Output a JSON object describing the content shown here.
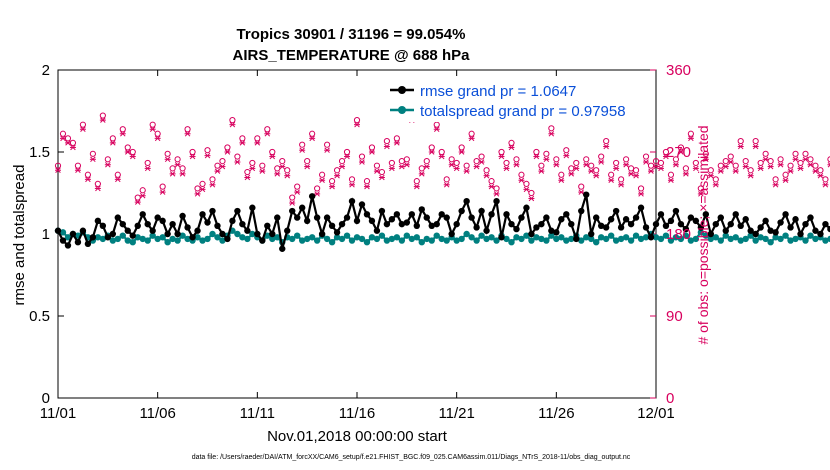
{
  "chart_data": {
    "type": "line",
    "title": "Tropics 30901 / 31196 = 99.054%",
    "subtitle": "AIRS_TEMPERATURE @ 688 hPa",
    "xlabel": "Nov.01,2018 00:00:00 start",
    "ylabel": "rmse and totalspread",
    "ylabel_right": "# of obs: o=possible; ×=assimilated",
    "footnote": "data file: /Users/raeder/DAI/ATM_forcXX/CAM6_setup/f.e21.FHIST_BGC.f09_025.CAM6assim.011/Diags_NTrS_2018-11/obs_diag_output.nc",
    "xlim": [
      0,
      30
    ],
    "ylim": [
      0,
      2
    ],
    "ylim_right": [
      0,
      360
    ],
    "x_ticks": [
      0,
      5,
      10,
      15,
      20,
      25,
      30
    ],
    "x_tick_labels": [
      "11/01",
      "11/06",
      "11/11",
      "11/16",
      "11/21",
      "11/26",
      "12/01"
    ],
    "y_ticks": [
      0,
      0.5,
      1,
      1.5,
      2
    ],
    "y_tick_labels": [
      "0",
      "0.5",
      "1",
      "1.5",
      "2"
    ],
    "y_right_ticks": [
      0,
      90,
      180,
      270,
      360
    ],
    "y_right_tick_labels": [
      "0",
      "90",
      "180",
      "270",
      "360"
    ],
    "step_days": 0.25,
    "legend_position": "top-right",
    "colors": {
      "rmse": "#000000",
      "spread": "#008080",
      "obs": "#d8005e",
      "legend_text": "#0a4fd8"
    },
    "series": [
      {
        "name": "rmse grand pr = 1.0647",
        "values": [
          1.02,
          0.96,
          0.93,
          1.0,
          0.95,
          1.02,
          0.94,
          0.98,
          1.08,
          1.05,
          0.98,
          1.0,
          1.1,
          1.06,
          1.02,
          0.99,
          1.05,
          1.12,
          1.06,
          1.02,
          1.1,
          1.08,
          1.0,
          1.06,
          1.0,
          1.11,
          1.04,
          0.98,
          1.02,
          1.12,
          1.07,
          1.14,
          1.05,
          1.0,
          0.97,
          1.08,
          1.14,
          1.06,
          1.02,
          1.16,
          1.0,
          0.96,
          1.05,
          1.0,
          1.1,
          0.91,
          1.02,
          1.14,
          1.1,
          1.16,
          1.08,
          1.23,
          1.1,
          1.0,
          1.1,
          1.05,
          1.01,
          1.06,
          1.1,
          1.2,
          1.08,
          1.18,
          1.12,
          1.08,
          1.02,
          1.14,
          1.06,
          1.09,
          1.12,
          1.06,
          1.07,
          1.12,
          1.05,
          1.15,
          1.1,
          1.05,
          1.06,
          1.12,
          1.1,
          1.0,
          1.06,
          1.14,
          1.2,
          1.1,
          1.04,
          1.14,
          1.02,
          1.12,
          1.2,
          0.98,
          1.12,
          1.06,
          1.03,
          1.1,
          1.16,
          1.0,
          1.04,
          1.06,
          1.1,
          1.02,
          1.01,
          1.09,
          1.12,
          1.06,
          0.97,
          1.14,
          1.24,
          1.0,
          1.1,
          1.05,
          1.04,
          1.09,
          1.14,
          1.04,
          1.09,
          1.06,
          1.1,
          1.16,
          1.04,
          0.98,
          1.06,
          1.12,
          1.05,
          1.08,
          1.14,
          1.06,
          1.03,
          1.1,
          1.08,
          1.04,
          1.12,
          1.0,
          1.06,
          1.1,
          1.02,
          1.06,
          1.12,
          1.05,
          1.09,
          1.02,
          1.0,
          1.04,
          1.08,
          1.02,
          1.01,
          1.07,
          1.12,
          1.04,
          1.09,
          1.0,
          1.06,
          1.1,
          1.02,
          1.0,
          1.06,
          1.03,
          1.08,
          1.16,
          1.1,
          1.04,
          1.0,
          1.08,
          1.14,
          1.05,
          1.1,
          1.2,
          1.08,
          1.16,
          1.02,
          1.06,
          1.18,
          1.1,
          0.98,
          1.06,
          1.1,
          0.96,
          0.88,
          1.04,
          1.1,
          1.2,
          1.08,
          1.0,
          1.1,
          1.16,
          1.06,
          1.12,
          1.0,
          0.96,
          1.06,
          1.2,
          1.14,
          1.04,
          1.1,
          1.02,
          1.0,
          1.06,
          1.16,
          1.08,
          1.04,
          1.12,
          1.1,
          0.94,
          0.9,
          1.04,
          1.12,
          1.0,
          0.96,
          1.05,
          1.02,
          0.9,
          1.0,
          1.14,
          1.02,
          1.0
        ]
      },
      {
        "name": "totalspread grand pr = 0.97958",
        "values": [
          1.02,
          1.01,
          0.98,
          1.0,
          0.99,
          1.01,
          0.98,
          0.96,
          0.98,
          0.97,
          0.99,
          0.96,
          0.97,
          0.99,
          0.96,
          0.95,
          0.98,
          0.97,
          0.96,
          0.99,
          0.97,
          0.98,
          0.95,
          0.97,
          0.96,
          0.99,
          0.97,
          0.96,
          0.98,
          0.96,
          0.97,
          1.0,
          0.98,
          0.96,
          0.99,
          1.02,
          1.0,
          0.98,
          0.97,
          1.0,
          0.98,
          0.96,
          0.99,
          0.97,
          0.98,
          0.95,
          0.98,
          0.97,
          0.99,
          0.96,
          0.97,
          0.98,
          0.96,
          0.99,
          0.97,
          0.95,
          0.98,
          0.97,
          0.99,
          0.96,
          0.98,
          0.97,
          0.95,
          0.98,
          0.97,
          0.99,
          0.96,
          0.97,
          0.98,
          0.96,
          0.99,
          0.97,
          0.98,
          0.95,
          0.97,
          0.96,
          0.99,
          0.97,
          0.96,
          0.98,
          0.96,
          0.97,
          1.0,
          0.98,
          0.96,
          0.99,
          0.97,
          0.98,
          0.96,
          0.99,
          0.97,
          0.95,
          0.98,
          0.97,
          0.99,
          0.96,
          0.98,
          0.97,
          0.96,
          0.99,
          0.97,
          0.98,
          0.96,
          0.97,
          0.99,
          0.96,
          0.98,
          0.97,
          0.95,
          0.98,
          0.97,
          0.99,
          0.96,
          0.97,
          0.98,
          0.96,
          0.99,
          0.97,
          0.98,
          1.0,
          0.98,
          0.97,
          0.99,
          0.96,
          0.98,
          0.97,
          0.99,
          0.96,
          0.97,
          1.01,
          0.99,
          0.97,
          0.98,
          0.96,
          0.99,
          0.97,
          0.98,
          0.96,
          0.97,
          0.99,
          0.96,
          0.98,
          0.97,
          0.95,
          0.98,
          0.97,
          0.99,
          0.96,
          0.97,
          0.98,
          0.96,
          0.99,
          0.97,
          0.98,
          0.96,
          0.97,
          0.99,
          0.96,
          0.98,
          1.0,
          0.98,
          0.96,
          0.99,
          0.97,
          0.98,
          0.96,
          0.97,
          0.99,
          0.96,
          0.98,
          0.97,
          0.95,
          0.98,
          0.97,
          0.99,
          0.96,
          0.97,
          0.98,
          0.96,
          0.99,
          1.01,
          0.99,
          0.97,
          0.98,
          0.96,
          0.99,
          0.97,
          0.98,
          0.96,
          0.97,
          0.99,
          0.96,
          0.98,
          0.97,
          0.95,
          0.98,
          0.97,
          0.99,
          0.96,
          0.97,
          0.98,
          0.96,
          0.99,
          0.97,
          0.98,
          0.96,
          0.97,
          1.0,
          0.99,
          0.97,
          0.98,
          0.96,
          0.99,
          0.97,
          0.98,
          0.96,
          0.97,
          0.99,
          0.96
        ]
      }
    ],
    "obs_possible": [
      255,
      290,
      285,
      280,
      255,
      300,
      245,
      268,
      235,
      310,
      262,
      285,
      245,
      295,
      275,
      270,
      220,
      228,
      258,
      300,
      290,
      232,
      268,
      252,
      262,
      252,
      295,
      270,
      230,
      235,
      272,
      240,
      255,
      260,
      275,
      305,
      265,
      285,
      248,
      258,
      285,
      255,
      295,
      270,
      252,
      260,
      250,
      220,
      232,
      278,
      260,
      290,
      230,
      245,
      278,
      238,
      250,
      260,
      270,
      240,
      305,
      265,
      238,
      275,
      255,
      248,
      282,
      258,
      285,
      260,
      262,
      310,
      238,
      252,
      260,
      275,
      300,
      270,
      240,
      262,
      258,
      275,
      255,
      290,
      260,
      265,
      250,
      238,
      230,
      270,
      258,
      280,
      262,
      245,
      235,
      225,
      270,
      255,
      268,
      296,
      262,
      245,
      272,
      252,
      258,
      232,
      262,
      255,
      250,
      265,
      282,
      245,
      258,
      240,
      262,
      252,
      250,
      230,
      265,
      255,
      260,
      258,
      270,
      245,
      262,
      275,
      252,
      290,
      258,
      230,
      268,
      250,
      240,
      255,
      260,
      265,
      255,
      282,
      260,
      250,
      282,
      258,
      268,
      260,
      240,
      262,
      245,
      255,
      268,
      258,
      268,
      262,
      255,
      250,
      240,
      262,
      268,
      265,
      290,
      258,
      245,
      270,
      255,
      258,
      275,
      240,
      258,
      262,
      250,
      258,
      268,
      245,
      290,
      258,
      280,
      262,
      255,
      270,
      232,
      258,
      255,
      262,
      268,
      258,
      265,
      250,
      275,
      285,
      258,
      240,
      262,
      265,
      255,
      270,
      250,
      258,
      268,
      245,
      258,
      255,
      275,
      262,
      268,
      258,
      255,
      245,
      262,
      268,
      270,
      258,
      305,
      258,
      275,
      262,
      290,
      295,
      310,
      295,
      290,
      300
    ],
    "obs_assimilated": [
      250,
      285,
      280,
      275,
      250,
      295,
      240,
      262,
      230,
      305,
      256,
      280,
      240,
      290,
      270,
      265,
      215,
      222,
      252,
      295,
      285,
      226,
      262,
      246,
      256,
      246,
      290,
      265,
      224,
      229,
      266,
      234,
      249,
      254,
      270,
      300,
      259,
      280,
      242,
      252,
      280,
      249,
      290,
      265,
      246,
      254,
      244,
      214,
      226,
      272,
      254,
      285,
      224,
      239,
      272,
      232,
      244,
      254,
      265,
      234,
      300,
      259,
      232,
      270,
      249,
      242,
      276,
      252,
      280,
      254,
      256,
      305,
      232,
      246,
      254,
      270,
      295,
      265,
      234,
      256,
      252,
      270,
      249,
      285,
      254,
      259,
      244,
      232,
      224,
      265,
      252,
      275,
      256,
      239,
      229,
      219,
      265,
      249,
      262,
      290,
      256,
      239,
      266,
      246,
      252,
      226,
      256,
      249,
      244,
      259,
      276,
      239,
      252,
      234,
      256,
      246,
      244,
      224,
      259,
      249,
      254,
      252,
      265,
      239,
      256,
      270,
      246,
      285,
      252,
      224,
      262,
      244,
      234,
      249,
      254,
      259,
      249,
      276,
      254,
      244,
      276,
      252,
      262,
      254,
      234,
      256,
      239,
      249,
      262,
      252,
      262,
      256,
      249,
      244,
      234,
      256,
      262,
      259,
      285,
      252,
      239,
      265,
      249,
      252,
      270,
      234,
      252,
      256,
      244,
      252,
      262,
      239,
      285,
      252,
      275,
      256,
      249,
      265,
      226,
      252,
      249,
      256,
      262,
      252,
      259,
      244,
      270,
      280,
      252,
      234,
      256,
      259,
      249,
      265,
      244,
      252,
      262,
      239,
      252,
      249,
      270,
      256,
      262,
      252,
      249,
      239,
      256,
      262,
      265,
      252,
      300,
      252,
      270,
      256,
      285,
      290,
      305,
      290,
      285,
      295
    ]
  }
}
